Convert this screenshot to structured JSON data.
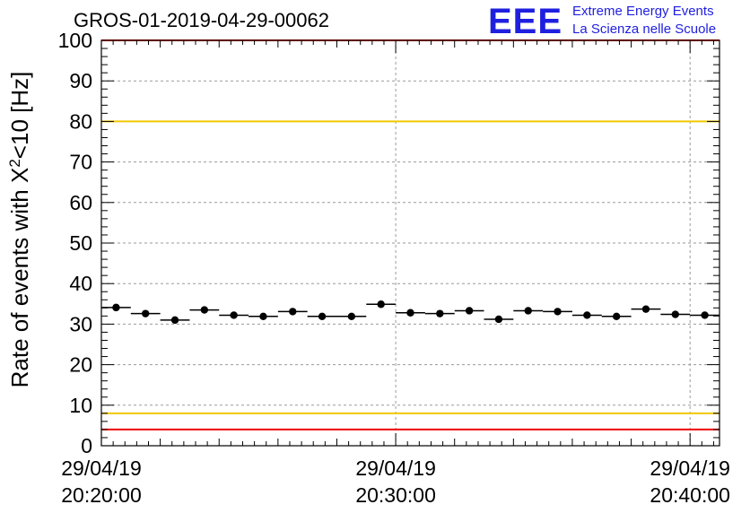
{
  "title": "GROS-01-2019-04-29-00062",
  "logo": {
    "mark": "EEE",
    "line1": "Extreme Energy Events",
    "line2": "La Scienza nelle Scuole",
    "color": "#1f1fe0"
  },
  "chart_data": {
    "type": "scatter",
    "title": "GROS-01-2019-04-29-00062",
    "ylabel": "Rate of events with X²<10 [Hz]",
    "ylim": [
      0,
      100
    ],
    "yticks": [
      0,
      10,
      20,
      30,
      40,
      50,
      60,
      70,
      80,
      90,
      100
    ],
    "xrange_minutes": [
      0,
      21
    ],
    "xticks": [
      {
        "minute": 0,
        "date": "29/04/19",
        "time": "20:20:00"
      },
      {
        "minute": 10,
        "date": "29/04/19",
        "time": "20:30:00"
      },
      {
        "minute": 20,
        "date": "29/04/19",
        "time": "20:40:00"
      }
    ],
    "grid": true,
    "reference_lines": [
      {
        "y": 100,
        "color": "#ee0000"
      },
      {
        "y": 80,
        "color": "#f0c800"
      },
      {
        "y": 8,
        "color": "#f0c800"
      },
      {
        "y": 4,
        "color": "#ee0000"
      }
    ],
    "series": [
      {
        "marker": "circle",
        "bin_width_minutes": 1,
        "x": [
          0.5,
          1.5,
          2.5,
          3.5,
          4.5,
          5.5,
          6.5,
          7.5,
          8.5,
          9.5,
          10.5,
          11.5,
          12.5,
          13.5,
          14.5,
          15.5,
          16.5,
          17.5,
          18.5,
          19.5,
          20.5
        ],
        "y": [
          34.1,
          32.6,
          31.0,
          33.5,
          32.2,
          31.9,
          33.1,
          31.9,
          31.9,
          34.9,
          32.8,
          32.6,
          33.3,
          31.2,
          33.3,
          33.1,
          32.2,
          31.9,
          33.7,
          32.4,
          32.2
        ]
      }
    ]
  }
}
